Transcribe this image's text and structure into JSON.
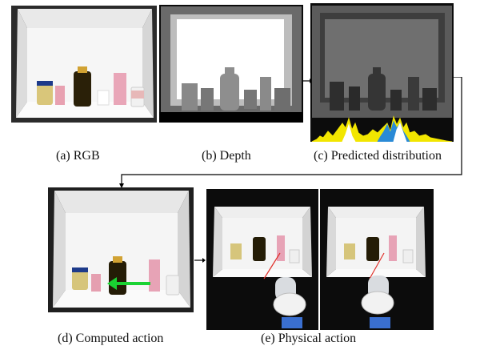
{
  "captions": {
    "a": "(a) RGB",
    "b": "(b) Depth",
    "c": "(c) Predicted distribution",
    "d": "(d) Computed action",
    "e": "(e) Physical action"
  },
  "colors": {
    "box_wall": "#f4f4f4",
    "box_shadow": "#c9c9c9",
    "depth_near": "#ffffff",
    "depth_far": "#555555",
    "dist_yellow": "#f2e600",
    "dist_blue": "#2a8ad6",
    "action_arrow": "#19d232",
    "laser": "#e0302a",
    "connector": "#000000"
  }
}
